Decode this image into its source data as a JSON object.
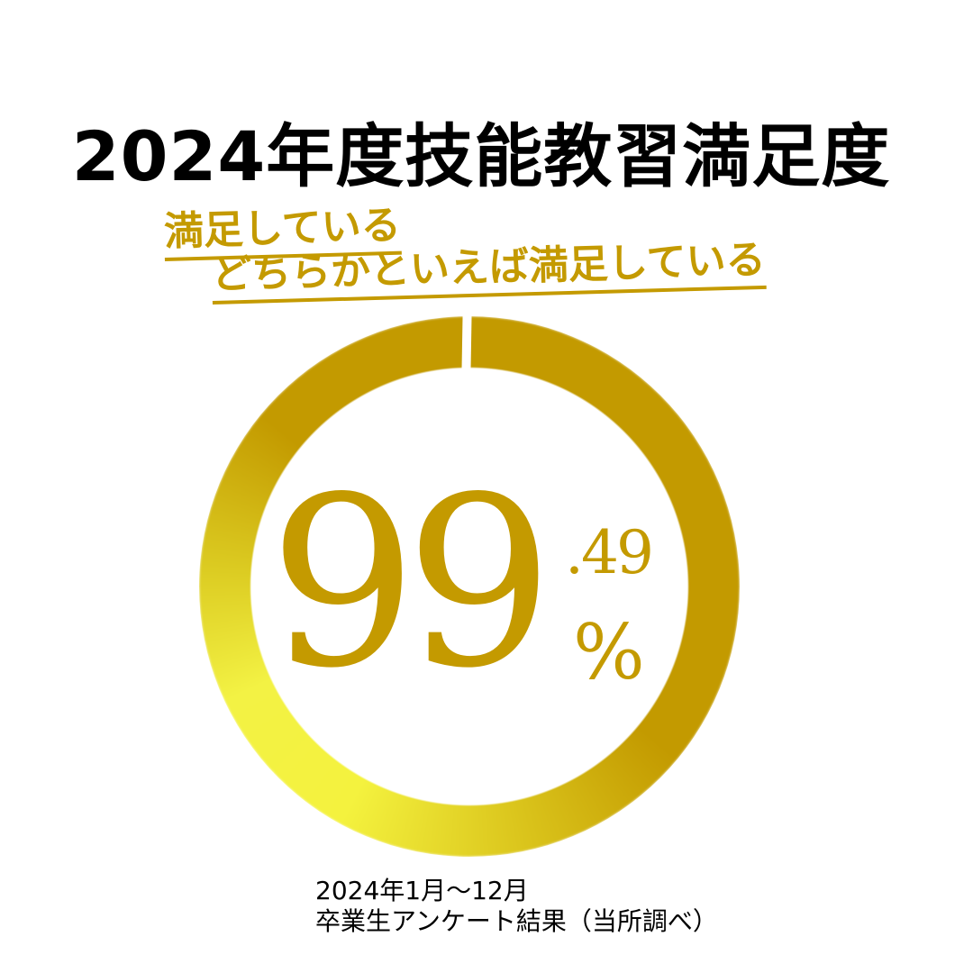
{
  "title": "2024年度技能教習満足度",
  "tags": [
    "満足している",
    "どちらかといえば満足している"
  ],
  "gauge": {
    "value_percent": 99.49,
    "integer": "99",
    "decimal": ".49",
    "unit": "%",
    "colors": {
      "dark": "#c39a00",
      "light": "#f4f23e"
    }
  },
  "note": {
    "period": "2024年1月〜12月",
    "source": "卒業生アンケート結果（当所調べ）"
  }
}
